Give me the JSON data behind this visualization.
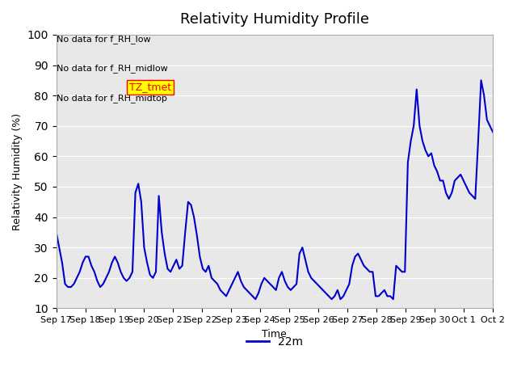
{
  "title": "Relativity Humidity Profile",
  "ylabel": "Relativity Humidity (%)",
  "xlabel": "Time",
  "ylim": [
    10,
    100
  ],
  "yticks": [
    10,
    20,
    30,
    40,
    50,
    60,
    70,
    80,
    90,
    100
  ],
  "line_color": "#0000cc",
  "line_width": 1.5,
  "legend_label": "22m",
  "legend_color": "#0000cc",
  "annotations": [
    "No data for f_RH_low",
    "No data for f_RH_midlow",
    "No data for f_RH_midtop"
  ],
  "tz_label": "TZ_tmet",
  "background_color": "#e8e8e8",
  "xtick_labels": [
    "Sep 17",
    "Sep 18",
    "Sep 19",
    "Sep 20",
    "Sep 21",
    "Sep 22",
    "Sep 23",
    "Sep 24",
    "Sep 25",
    "Sep 26",
    "Sep 27",
    "Sep 28",
    "Sep 29",
    "Sep 30",
    "Oct 1",
    "Oct 2"
  ],
  "x_values": [
    0,
    1,
    2,
    3,
    4,
    5,
    6,
    7,
    8,
    9,
    10,
    11,
    12,
    13,
    14,
    15,
    16,
    17,
    18,
    19,
    20,
    21,
    22,
    23,
    24,
    25,
    26,
    27,
    28,
    29,
    30,
    31,
    32,
    33,
    34,
    35,
    36,
    37,
    38,
    39,
    40,
    41,
    42,
    43,
    44,
    45,
    46,
    47,
    48,
    49,
    50,
    51,
    52,
    53,
    54,
    55,
    56,
    57,
    58,
    59,
    60,
    61,
    62,
    63,
    64,
    65,
    66,
    67,
    68,
    69,
    70,
    71,
    72,
    73,
    74,
    75,
    76,
    77,
    78,
    79,
    80,
    81,
    82,
    83,
    84,
    85,
    86,
    87,
    88,
    89,
    90,
    91,
    92,
    93,
    94,
    95,
    96,
    97,
    98,
    99,
    100,
    101,
    102,
    103,
    104,
    105,
    106,
    107,
    108,
    109,
    110,
    111,
    112,
    113,
    114,
    115,
    116,
    117,
    118,
    119,
    120,
    121,
    122,
    123,
    124,
    125,
    126,
    127,
    128,
    129,
    130,
    131,
    132,
    133,
    134,
    135,
    136,
    137,
    138,
    139,
    140,
    141,
    142,
    143,
    144,
    145,
    146,
    147,
    148,
    149
  ],
  "y_values": [
    35,
    30,
    25,
    18,
    17,
    17,
    18,
    20,
    22,
    25,
    27,
    27,
    24,
    22,
    19,
    17,
    18,
    20,
    22,
    25,
    27,
    25,
    22,
    20,
    19,
    20,
    22,
    48,
    51,
    45,
    30,
    25,
    21,
    20,
    22,
    47,
    35,
    28,
    23,
    22,
    24,
    26,
    23,
    24,
    35,
    45,
    44,
    40,
    34,
    27,
    23,
    22,
    24,
    20,
    19,
    18,
    16,
    15,
    14,
    16,
    18,
    20,
    22,
    19,
    17,
    16,
    15,
    14,
    13,
    15,
    18,
    20,
    19,
    18,
    17,
    16,
    20,
    22,
    19,
    17,
    16,
    17,
    18,
    28,
    30,
    26,
    22,
    20,
    19,
    18,
    17,
    16,
    15,
    14,
    13,
    14,
    16,
    13,
    14,
    16,
    18,
    24,
    27,
    28,
    26,
    24,
    23,
    22,
    22,
    14,
    14,
    15,
    16,
    14,
    14,
    13,
    24,
    23,
    22,
    22,
    58,
    65,
    70,
    82,
    70,
    65,
    62,
    60,
    61,
    57,
    55,
    52,
    52,
    48,
    46,
    48,
    52,
    53,
    54,
    52,
    50,
    48,
    47,
    46,
    65,
    85,
    80,
    72,
    70,
    68
  ]
}
